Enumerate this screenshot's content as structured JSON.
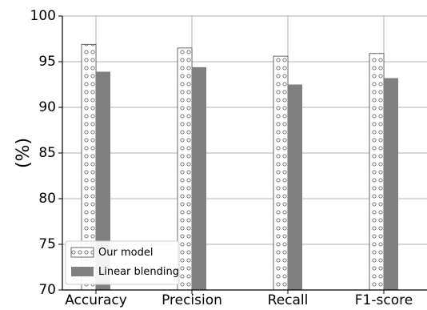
{
  "chart_data": {
    "type": "bar",
    "categories": [
      "Accuracy",
      "Precision",
      "Recall",
      "F1-score"
    ],
    "series": [
      {
        "name": "Our model",
        "values": [
          96.9,
          96.5,
          95.6,
          95.9
        ],
        "pattern": "dots",
        "color": "#ffffff"
      },
      {
        "name": "Linear blending",
        "values": [
          93.9,
          94.4,
          92.5,
          93.2
        ],
        "pattern": "solid",
        "color": "#808080"
      }
    ],
    "ylabel": "(%)",
    "xlabel": "",
    "ylim": [
      70,
      100
    ],
    "yticks": [
      70,
      75,
      80,
      85,
      90,
      95,
      100
    ],
    "grid": true,
    "legend_position": "bottom-left"
  }
}
